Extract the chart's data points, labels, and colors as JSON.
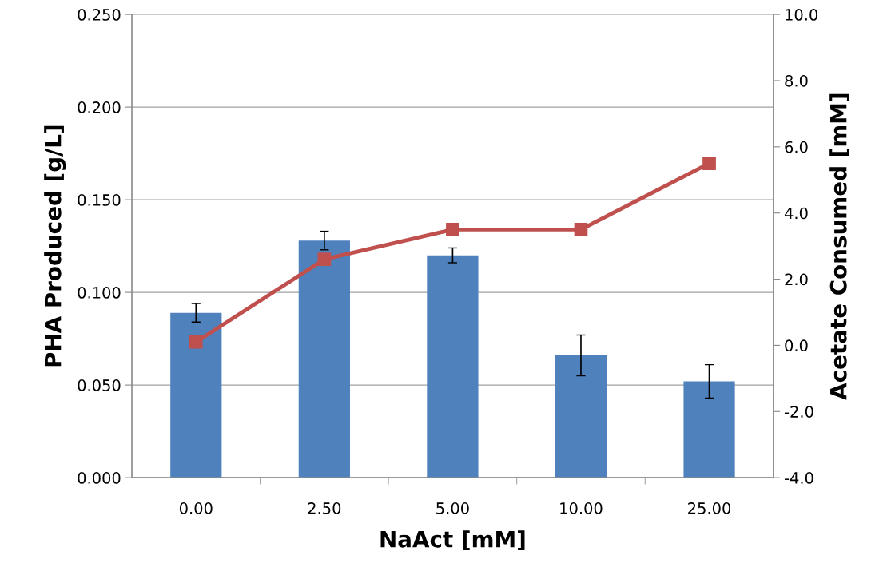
{
  "chart_data": {
    "type": "bar",
    "xlabel": "NaAct [mM]",
    "ylabel": "PHA Produced [g/L]",
    "y2label": "Acetate Consumed [mM]",
    "categories": [
      "0.00",
      "2.50",
      "5.00",
      "10.00",
      "25.00"
    ],
    "series": [
      {
        "color": "#4f81bd",
        "values": [
          0.089,
          0.128,
          0.12,
          0.066,
          0.052
        ],
        "errors": [
          0.005,
          0.005,
          0.004,
          0.011,
          0.009
        ]
      },
      {
        "type": "line",
        "axis": "y2",
        "color": "#c0504d",
        "marker": "square",
        "values": [
          0.1,
          2.6,
          3.5,
          3.5,
          5.5
        ]
      }
    ],
    "ylim": [
      0,
      0.25
    ],
    "yticks": [
      {
        "value": 0,
        "label": "0.000"
      },
      {
        "value": 0.05,
        "label": "0.050"
      },
      {
        "value": 0.1,
        "label": "0.100"
      },
      {
        "value": 0.15,
        "label": "0.150"
      },
      {
        "value": 0.2,
        "label": "0.200"
      },
      {
        "value": 0.25,
        "label": "0.250"
      }
    ],
    "y2lim": [
      -4,
      10
    ],
    "y2ticks": [
      {
        "value": -4,
        "label": "-4.0"
      },
      {
        "value": -2,
        "label": "-2.0"
      },
      {
        "value": 0,
        "label": "0.0"
      },
      {
        "value": 2,
        "label": "2.0"
      },
      {
        "value": 4,
        "label": "4.0"
      },
      {
        "value": 6,
        "label": "6.0"
      },
      {
        "value": 8,
        "label": "8.0"
      },
      {
        "value": 10,
        "label": "10.0"
      }
    ],
    "grid": "y",
    "legend": false
  }
}
